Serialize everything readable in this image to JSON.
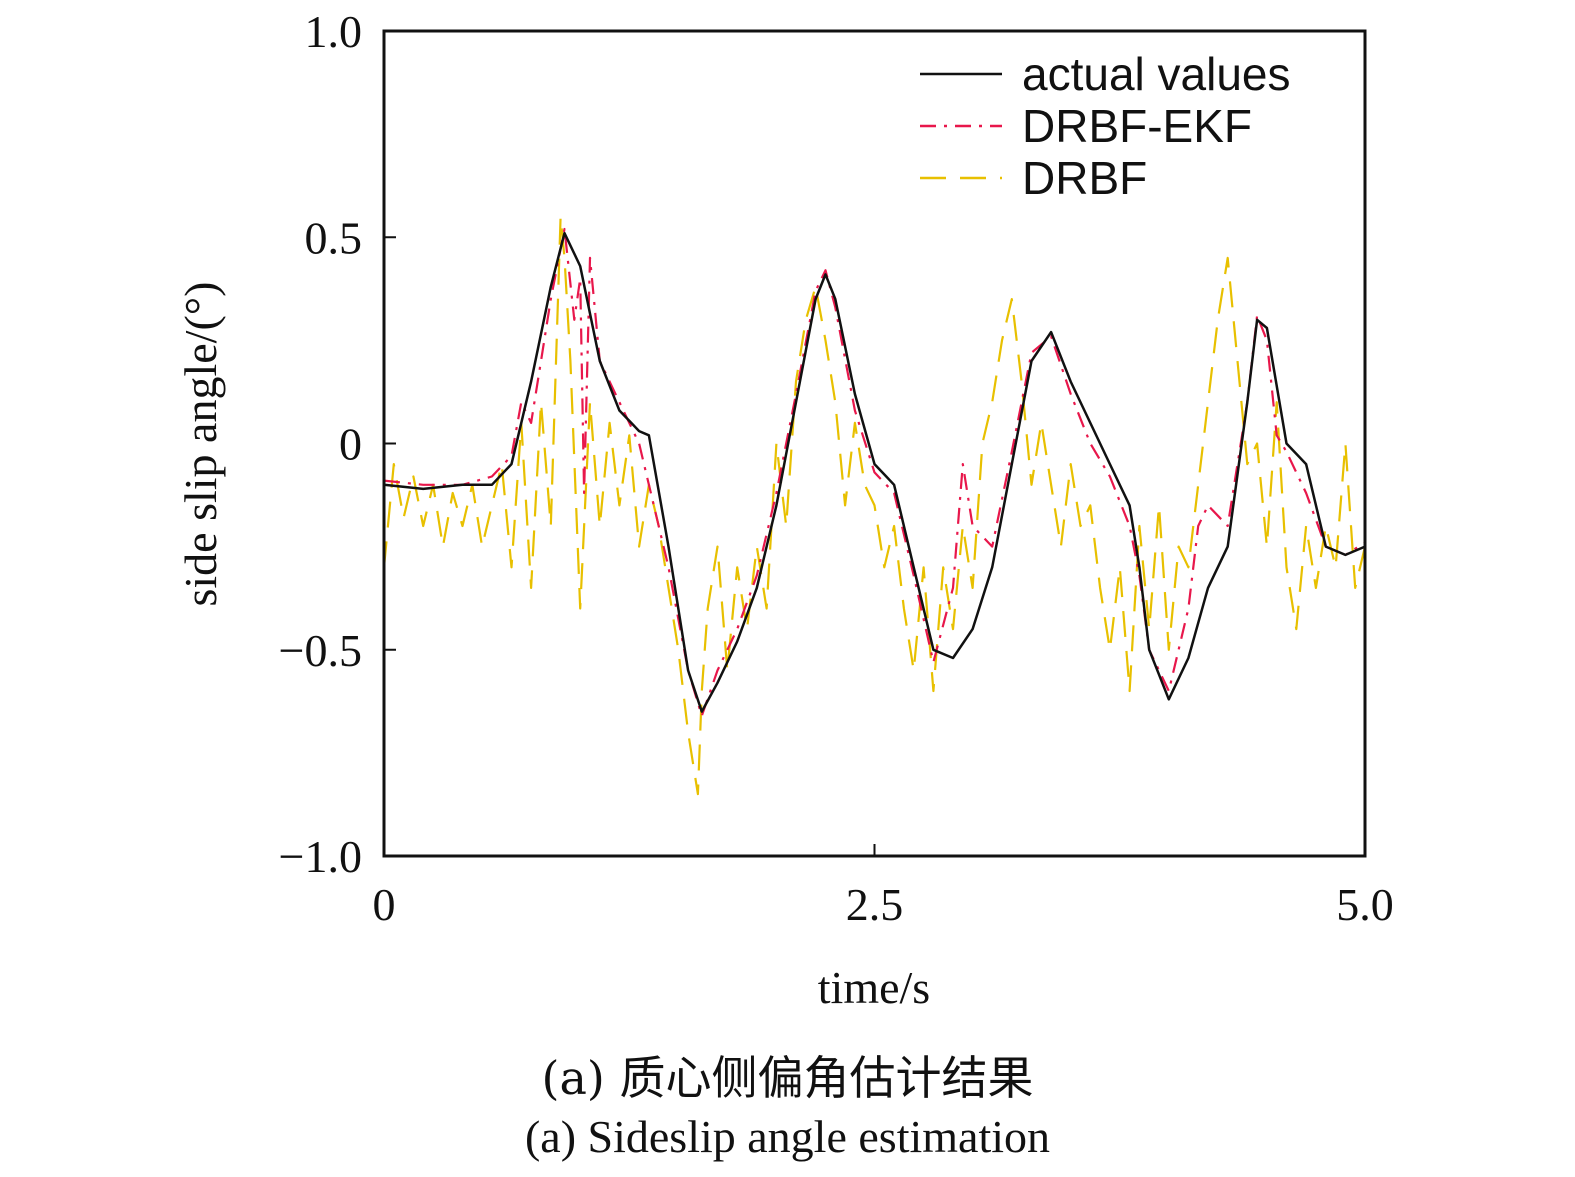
{
  "chart_data": {
    "type": "line",
    "xlabel": "time/s",
    "ylabel": "side slip angle/(°)",
    "xlim": [
      0,
      5
    ],
    "ylim": [
      -1,
      1
    ],
    "x_ticks": [
      {
        "value": 0,
        "label": "0"
      },
      {
        "value": 2.5,
        "label": "2.5"
      },
      {
        "value": 5,
        "label": "5.0"
      }
    ],
    "y_ticks": [
      {
        "value": 1,
        "label": "1.0"
      },
      {
        "value": 0.5,
        "label": "0.5"
      },
      {
        "value": 0,
        "label": "0"
      },
      {
        "value": -0.5,
        "label": "−0.5"
      },
      {
        "value": -1,
        "label": "−1.0"
      }
    ],
    "grid": false,
    "legend_position": "top-right",
    "series": [
      {
        "name": "actual values",
        "color": "#111111",
        "dash": "solid",
        "x": [
          0,
          0.2,
          0.4,
          0.55,
          0.65,
          0.75,
          0.85,
          0.92,
          1.0,
          1.1,
          1.2,
          1.3,
          1.35,
          1.45,
          1.55,
          1.62,
          1.7,
          1.8,
          1.9,
          2.0,
          2.1,
          2.2,
          2.25,
          2.3,
          2.4,
          2.5,
          2.6,
          2.7,
          2.8,
          2.9,
          3.0,
          3.1,
          3.2,
          3.3,
          3.4,
          3.5,
          3.6,
          3.7,
          3.8,
          3.85,
          3.9,
          4.0,
          4.1,
          4.2,
          4.3,
          4.4,
          4.45,
          4.5,
          4.6,
          4.7,
          4.8,
          4.9,
          5.0
        ],
        "y": [
          -0.1,
          -0.11,
          -0.1,
          -0.1,
          -0.05,
          0.15,
          0.38,
          0.51,
          0.43,
          0.2,
          0.08,
          0.03,
          0.02,
          -0.25,
          -0.55,
          -0.65,
          -0.58,
          -0.48,
          -0.35,
          -0.15,
          0.1,
          0.35,
          0.41,
          0.35,
          0.12,
          -0.05,
          -0.1,
          -0.3,
          -0.5,
          -0.52,
          -0.45,
          -0.3,
          -0.05,
          0.2,
          0.27,
          0.15,
          0.05,
          -0.05,
          -0.15,
          -0.3,
          -0.5,
          -0.62,
          -0.52,
          -0.35,
          -0.25,
          0.1,
          0.3,
          0.28,
          0.0,
          -0.05,
          -0.25,
          -0.27,
          -0.25
        ]
      },
      {
        "name": "DRBF-EKF",
        "color": "#e8174b",
        "dash": "dashdot",
        "x": [
          0,
          0.2,
          0.4,
          0.55,
          0.65,
          0.7,
          0.75,
          0.8,
          0.85,
          0.92,
          0.97,
          1.0,
          1.02,
          1.05,
          1.1,
          1.2,
          1.3,
          1.4,
          1.45,
          1.55,
          1.62,
          1.7,
          1.8,
          1.9,
          2.0,
          2.1,
          2.2,
          2.25,
          2.3,
          2.4,
          2.5,
          2.6,
          2.7,
          2.8,
          2.9,
          2.95,
          3.0,
          3.1,
          3.2,
          3.3,
          3.4,
          3.5,
          3.6,
          3.7,
          3.8,
          3.85,
          3.9,
          4.0,
          4.1,
          4.15,
          4.2,
          4.3,
          4.4,
          4.45,
          4.5,
          4.55,
          4.6,
          4.7,
          4.8,
          4.9,
          5.0
        ],
        "y": [
          -0.09,
          -0.1,
          -0.1,
          -0.08,
          -0.03,
          0.1,
          0.05,
          0.2,
          0.35,
          0.52,
          0.3,
          0.4,
          -0.12,
          0.45,
          0.2,
          0.1,
          0.0,
          -0.2,
          -0.3,
          -0.55,
          -0.66,
          -0.55,
          -0.45,
          -0.32,
          -0.12,
          0.12,
          0.37,
          0.42,
          0.33,
          0.08,
          -0.07,
          -0.12,
          -0.32,
          -0.53,
          -0.35,
          -0.05,
          -0.2,
          -0.25,
          -0.02,
          0.22,
          0.26,
          0.12,
          0.0,
          -0.08,
          -0.2,
          -0.32,
          -0.5,
          -0.6,
          -0.4,
          -0.2,
          -0.15,
          -0.2,
          0.1,
          0.31,
          0.25,
          0.02,
          -0.02,
          -0.12,
          -0.25,
          -0.27,
          -0.24
        ]
      },
      {
        "name": "DRBF",
        "color": "#e8c000",
        "dash": "dashed",
        "x": [
          0,
          0.05,
          0.1,
          0.15,
          0.2,
          0.25,
          0.3,
          0.35,
          0.4,
          0.45,
          0.5,
          0.55,
          0.6,
          0.65,
          0.7,
          0.75,
          0.8,
          0.85,
          0.9,
          0.92,
          0.95,
          1.0,
          1.05,
          1.1,
          1.15,
          1.2,
          1.25,
          1.3,
          1.35,
          1.4,
          1.45,
          1.5,
          1.55,
          1.6,
          1.62,
          1.65,
          1.7,
          1.75,
          1.8,
          1.85,
          1.9,
          1.95,
          2.0,
          2.05,
          2.1,
          2.15,
          2.2,
          2.25,
          2.3,
          2.35,
          2.4,
          2.45,
          2.5,
          2.55,
          2.6,
          2.65,
          2.7,
          2.75,
          2.8,
          2.85,
          2.9,
          2.95,
          3.0,
          3.05,
          3.1,
          3.15,
          3.2,
          3.25,
          3.3,
          3.35,
          3.4,
          3.45,
          3.5,
          3.55,
          3.6,
          3.65,
          3.7,
          3.75,
          3.8,
          3.85,
          3.9,
          3.95,
          4.0,
          4.05,
          4.1,
          4.15,
          4.2,
          4.25,
          4.3,
          4.35,
          4.4,
          4.45,
          4.5,
          4.55,
          4.6,
          4.65,
          4.7,
          4.75,
          4.8,
          4.85,
          4.9,
          4.95,
          5.0
        ],
        "y": [
          -0.3,
          -0.05,
          -0.18,
          -0.08,
          -0.2,
          -0.1,
          -0.25,
          -0.12,
          -0.2,
          -0.1,
          -0.25,
          -0.15,
          -0.05,
          -0.3,
          0.05,
          -0.35,
          0.1,
          -0.2,
          0.55,
          0.45,
          0.2,
          -0.4,
          0.1,
          -0.2,
          0.05,
          -0.15,
          0.02,
          -0.25,
          -0.1,
          -0.2,
          -0.35,
          -0.5,
          -0.7,
          -0.85,
          -0.6,
          -0.4,
          -0.25,
          -0.55,
          -0.3,
          -0.45,
          -0.25,
          -0.4,
          0.0,
          -0.2,
          0.15,
          0.3,
          0.38,
          0.25,
          0.1,
          -0.15,
          0.05,
          -0.1,
          -0.15,
          -0.3,
          -0.2,
          -0.4,
          -0.55,
          -0.3,
          -0.6,
          -0.3,
          -0.45,
          -0.2,
          -0.35,
          0.0,
          0.1,
          0.25,
          0.35,
          0.15,
          -0.1,
          0.05,
          -0.1,
          -0.25,
          -0.05,
          -0.2,
          -0.15,
          -0.35,
          -0.5,
          -0.3,
          -0.6,
          -0.2,
          -0.45,
          -0.15,
          -0.5,
          -0.25,
          -0.3,
          -0.1,
          0.1,
          0.3,
          0.45,
          0.2,
          -0.05,
          0.0,
          -0.25,
          0.1,
          -0.3,
          -0.45,
          -0.2,
          -0.35,
          -0.2,
          -0.3,
          0.0,
          -0.35,
          -0.25
        ]
      }
    ]
  },
  "caption_cn": "(a) 质心侧偏角估计结果",
  "caption_en": "(a) Sideslip angle estimation"
}
